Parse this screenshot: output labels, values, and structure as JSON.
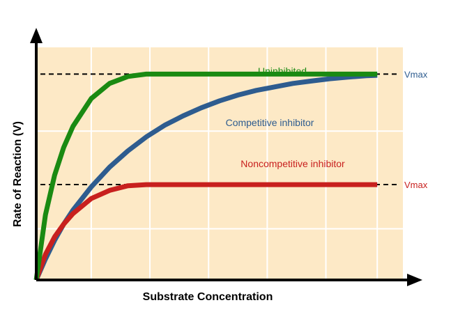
{
  "chart_data": {
    "type": "line",
    "title": "",
    "xlabel": "Substrate Concentration",
    "ylabel": "Rate of Reaction (V)",
    "xlim": [
      0,
      10
    ],
    "ylim": [
      0,
      10
    ],
    "grid": true,
    "legend": "none (inline series labels)",
    "background_color": "#fde9c6",
    "x": [
      0,
      0.25,
      0.5,
      0.75,
      1,
      1.5,
      2,
      2.5,
      3,
      3.5,
      4,
      4.5,
      5,
      5.5,
      6,
      6.5,
      7,
      7.5,
      8,
      8.5,
      9,
      9.5,
      10
    ],
    "series": [
      {
        "name": "Uninhibited",
        "color": "#1a8a12",
        "values": [
          0,
          2.8,
          4.5,
          5.7,
          6.6,
          7.8,
          8.45,
          8.75,
          8.85,
          8.85,
          8.85,
          8.85,
          8.85,
          8.85,
          8.85,
          8.85,
          8.85,
          8.85,
          8.85,
          8.85,
          8.85,
          8.85,
          8.85
        ]
      },
      {
        "name": "Competitive inhibitor",
        "color": "#2e5c8f",
        "values": [
          0,
          0.9,
          1.7,
          2.4,
          3.0,
          4.0,
          4.85,
          5.55,
          6.15,
          6.65,
          7.05,
          7.4,
          7.7,
          7.95,
          8.15,
          8.3,
          8.45,
          8.55,
          8.65,
          8.72,
          8.78,
          8.8,
          8.8
        ]
      },
      {
        "name": "Noncompetitive inhibitor",
        "color": "#c8201e",
        "values": [
          0,
          1.1,
          1.85,
          2.4,
          2.85,
          3.5,
          3.85,
          4.05,
          4.1,
          4.1,
          4.1,
          4.1,
          4.1,
          4.1,
          4.1,
          4.1,
          4.1,
          4.1,
          4.1,
          4.1,
          4.1,
          4.1,
          4.1
        ]
      }
    ],
    "reference_lines": [
      {
        "label": "Vmax",
        "y": 8.85,
        "color": "#2e5c8f",
        "style": "dashed"
      },
      {
        "label": "Vmax",
        "y": 4.1,
        "color": "#c8201e",
        "style": "dashed"
      }
    ]
  }
}
